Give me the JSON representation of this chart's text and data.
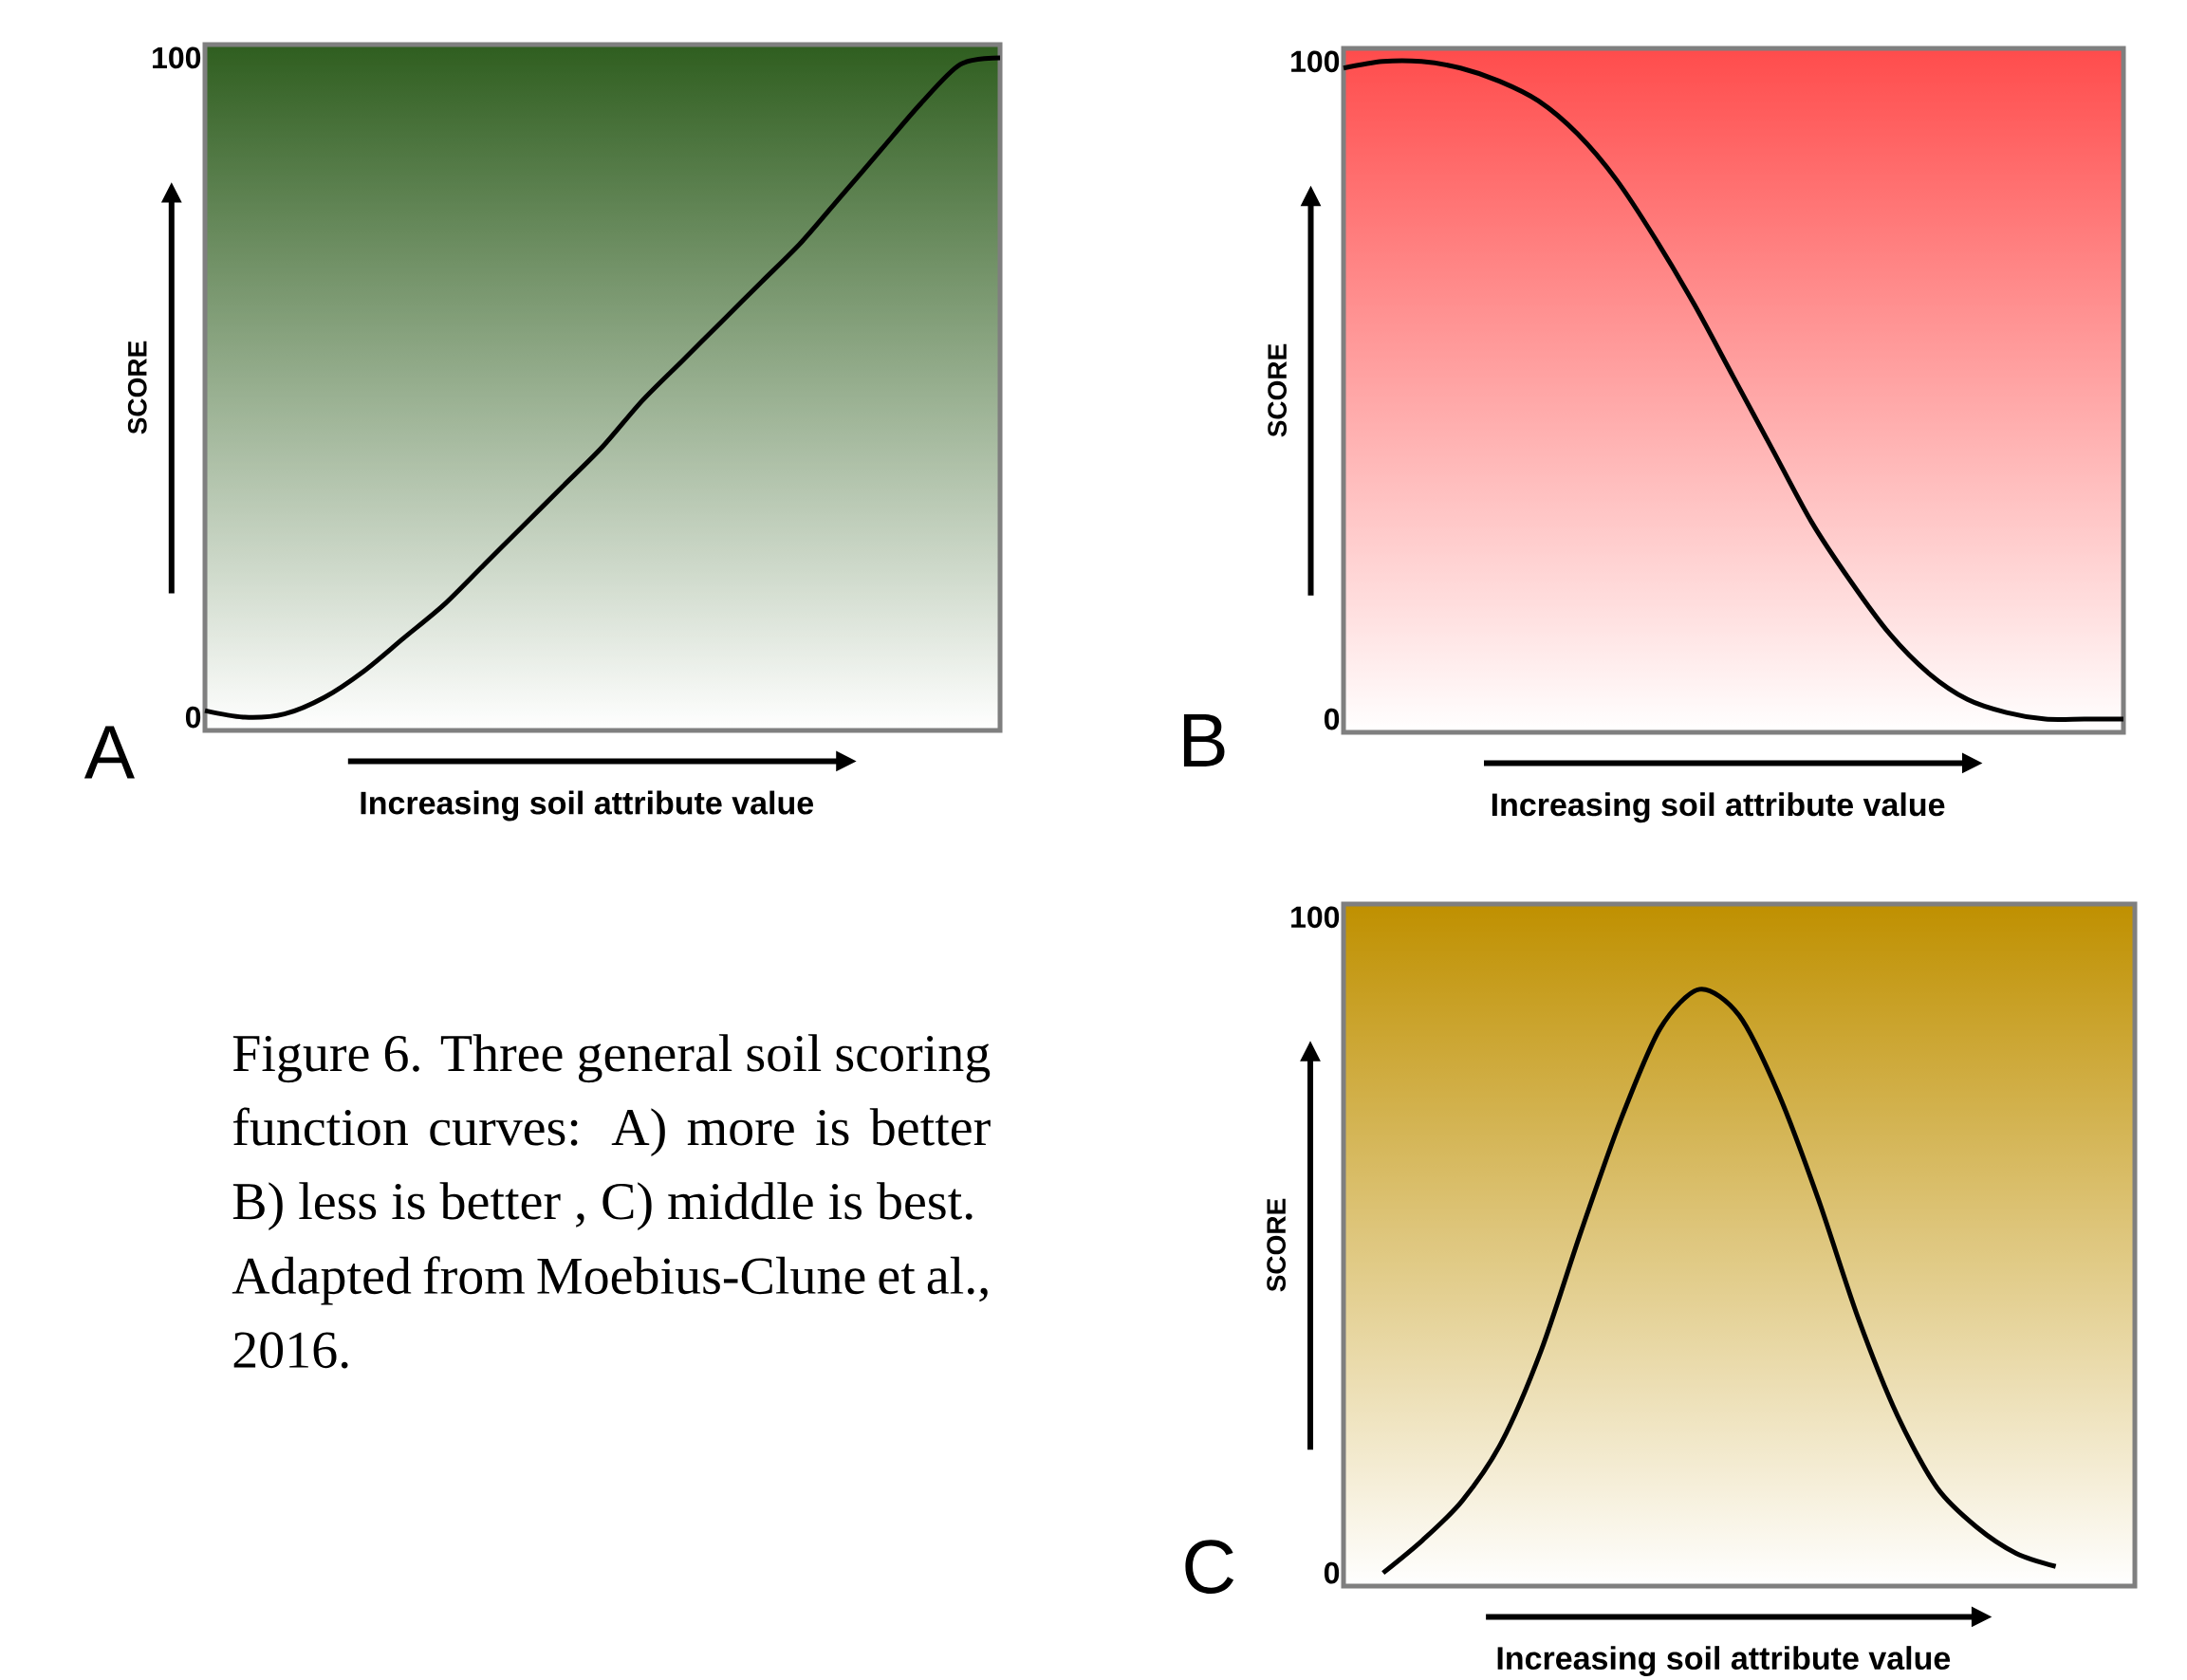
{
  "chart_data": [
    {
      "type": "line",
      "title": "A",
      "xlabel": "Increasing soil attribute value",
      "ylabel": "SCORE",
      "categories": [
        null,
        null,
        null,
        null,
        null,
        null,
        null,
        null,
        null,
        null,
        null,
        null,
        null,
        null,
        null,
        null,
        null,
        null,
        null,
        null,
        null
      ],
      "series": [
        {
          "color": "#000000",
          "values": [
            1,
            0,
            0.5,
            3,
            7,
            12,
            17,
            23,
            29,
            35,
            41,
            48,
            54,
            60,
            66,
            72,
            79,
            86,
            93,
            99,
            100
          ]
        }
      ],
      "ylim": [
        -2,
        102
      ],
      "yticks": [
        0,
        100
      ],
      "tick_labels": "y"
    },
    {
      "type": "line",
      "title": "B",
      "xlabel": "Increasing soil attribute value",
      "ylabel": "SCORE",
      "categories": [
        null,
        null,
        null,
        null,
        null,
        null,
        null,
        null,
        null,
        null,
        null,
        null,
        null,
        null,
        null,
        null,
        null,
        null,
        null,
        null,
        null
      ],
      "series": [
        {
          "color": "#000000",
          "values": [
            99,
            100,
            100,
            99,
            97,
            94,
            89,
            82,
            73,
            63,
            52,
            41,
            30,
            21,
            13,
            7,
            3,
            1,
            0,
            0,
            0
          ]
        }
      ],
      "ylim": [
        -2,
        102
      ],
      "yticks": [
        0,
        100
      ],
      "tick_labels": "y"
    },
    {
      "type": "line",
      "title": "C",
      "xlabel": "Increasing soil attribute value",
      "ylabel": "SCORE",
      "categories": [
        null,
        null,
        null,
        null,
        null,
        null,
        null,
        null,
        null,
        null,
        null,
        null,
        null,
        null,
        null,
        null,
        null,
        null,
        null,
        null,
        null
      ],
      "series": [
        {
          "color": "#000000",
          "values": [
            null,
            0,
            5,
            11,
            20,
            34,
            52,
            69,
            83,
            89,
            85,
            73,
            57,
            39,
            24,
            13,
            7,
            3,
            1,
            null,
            null
          ]
        }
      ],
      "ylim": [
        -2,
        102
      ],
      "yticks": [
        0,
        100
      ],
      "tick_labels": "y"
    },
    {
      "type": "other",
      "annotations": [
        "Figure 6. Three general soil scoring function curves: A) more is better B) less is better , C) middle is best.",
        "Adapted from Moebius-Clune et al., 2016."
      ]
    }
  ]
}
